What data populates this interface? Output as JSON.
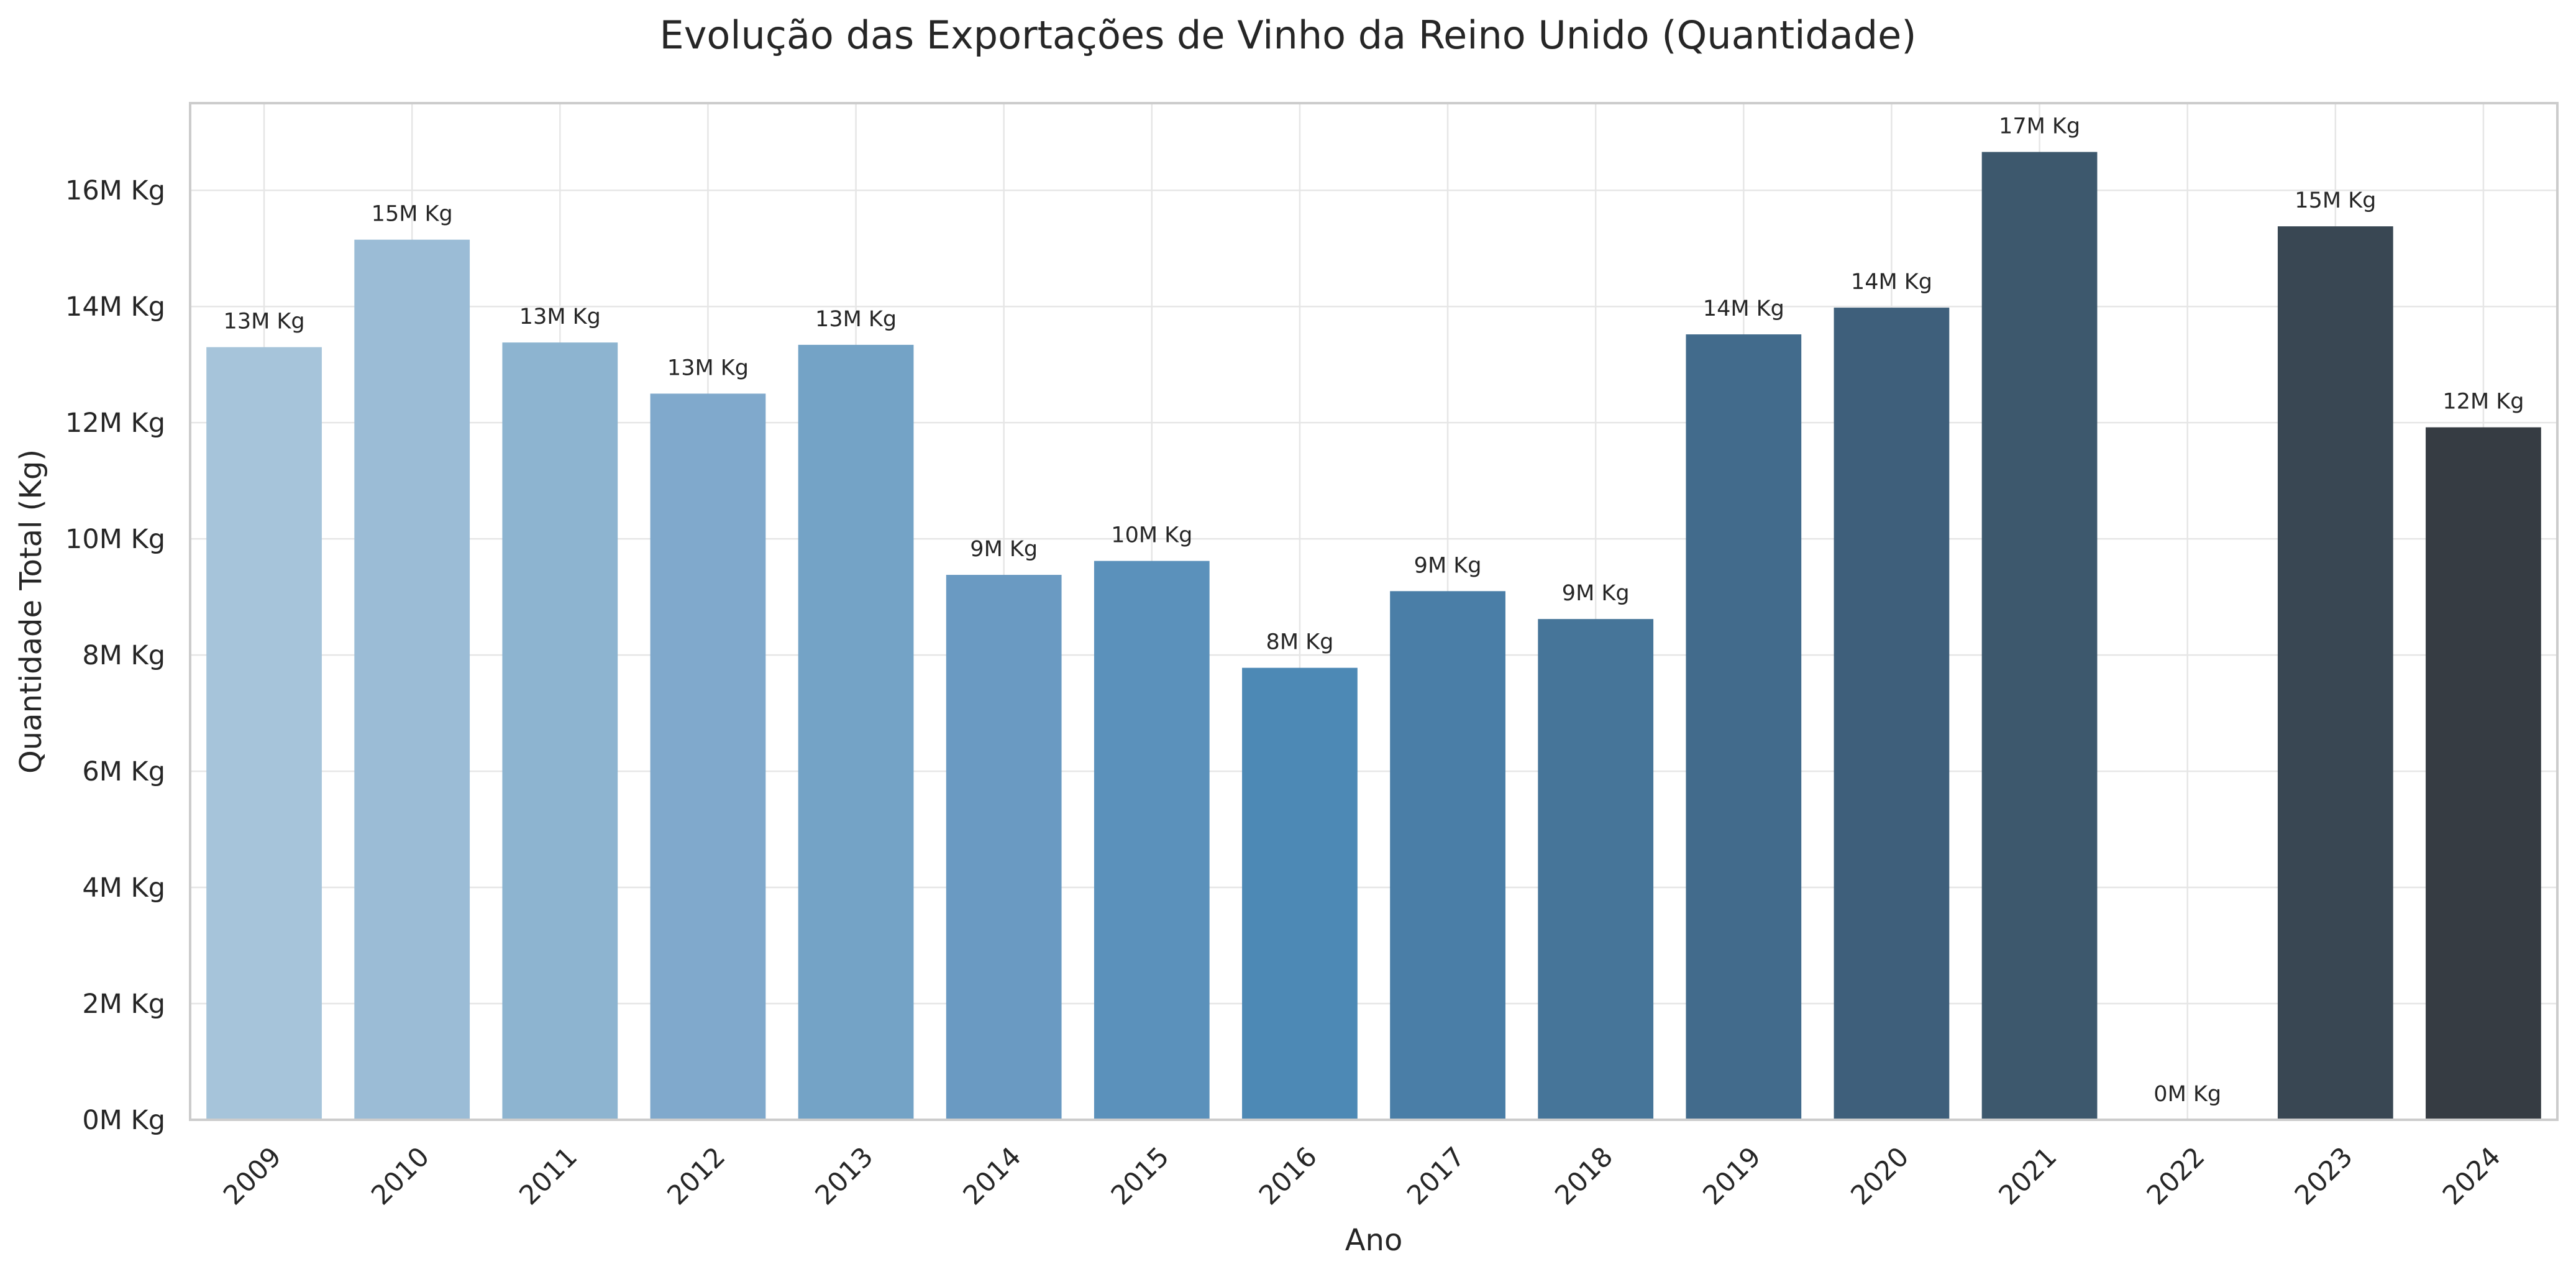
{
  "chart_data": {
    "type": "bar",
    "title": "Evolução das Exportações de Vinho da Reino Unido (Quantidade)",
    "xlabel": "Ano",
    "ylabel": "Quantidade Total (Kg)",
    "categories": [
      "2009",
      "2010",
      "2011",
      "2012",
      "2013",
      "2014",
      "2015",
      "2016",
      "2017",
      "2018",
      "2019",
      "2020",
      "2021",
      "2022",
      "2023",
      "2024"
    ],
    "values": [
      13300000,
      15150000,
      13380000,
      12500000,
      13340000,
      9380000,
      9620000,
      7780000,
      9100000,
      8620000,
      13520000,
      13980000,
      16660000,
      0,
      15380000,
      11920000
    ],
    "data_labels": [
      "13M Kg",
      "15M Kg",
      "13M Kg",
      "13M Kg",
      "13M Kg",
      "9M Kg",
      "10M Kg",
      "8M Kg",
      "9M Kg",
      "9M Kg",
      "14M Kg",
      "14M Kg",
      "17M Kg",
      "0M Kg",
      "15M Kg",
      "12M Kg"
    ],
    "bar_colors": [
      "#a6c4da",
      "#9bbcd6",
      "#8db4d0",
      "#80a9cc",
      "#74a3c6",
      "#6a9ac2",
      "#5b91bb",
      "#4d89b5",
      "#4a7ea7",
      "#467599",
      "#426b8c",
      "#3e5f7b",
      "#3d586d",
      "#3a4e5f",
      "#394753",
      "#363c43"
    ],
    "ylim": [
      0,
      17500000
    ],
    "yticks": [
      0,
      2000000,
      4000000,
      6000000,
      8000000,
      10000000,
      12000000,
      14000000,
      16000000
    ],
    "ytick_labels": [
      "0M Kg",
      "2M Kg",
      "4M Kg",
      "6M Kg",
      "8M Kg",
      "10M Kg",
      "12M Kg",
      "14M Kg",
      "16M Kg"
    ],
    "grid": true,
    "x_tick_rotation": 45
  }
}
